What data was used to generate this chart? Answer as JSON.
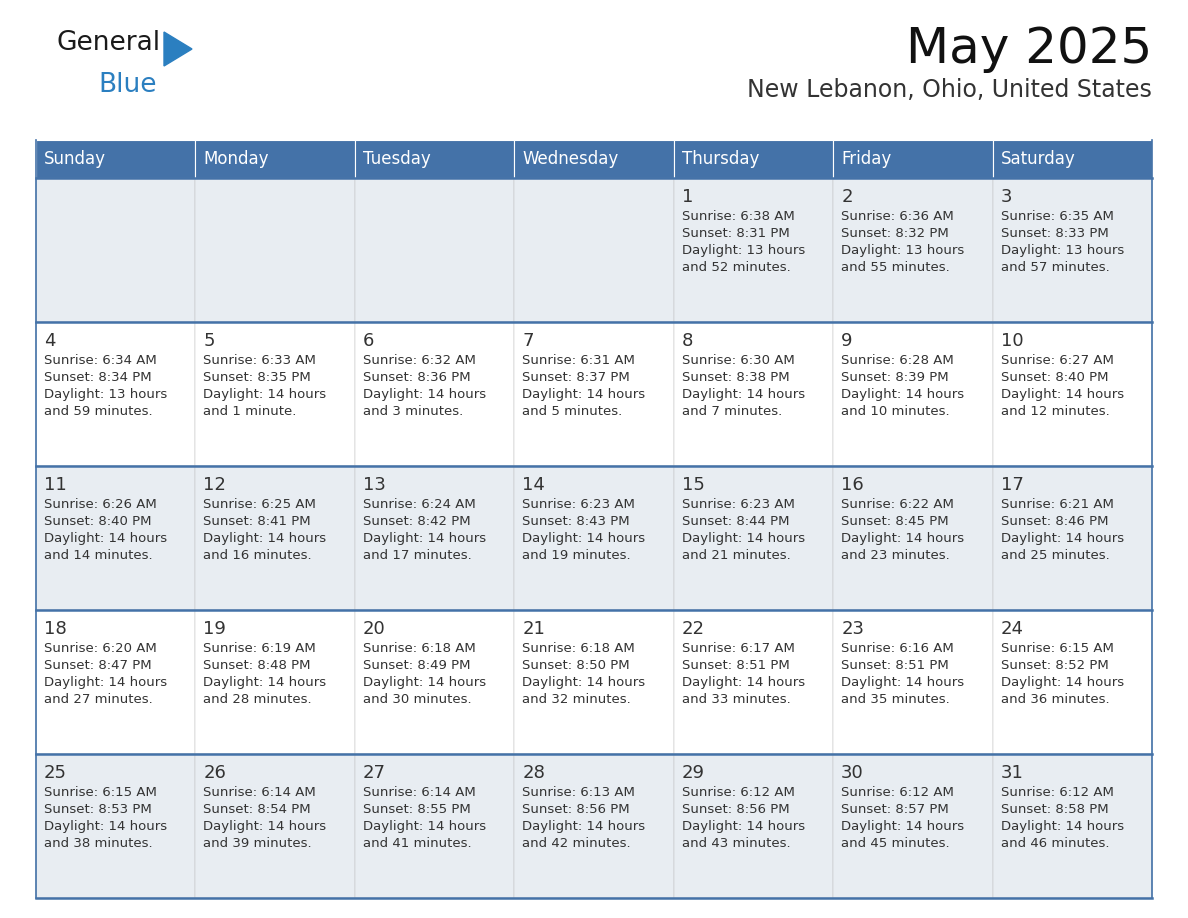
{
  "title": "May 2025",
  "subtitle": "New Lebanon, Ohio, United States",
  "header_bg_color": "#4472a8",
  "header_text_color": "#ffffff",
  "cell_bg_odd": "#e8edf2",
  "cell_bg_even": "#ffffff",
  "border_color": "#4472a8",
  "text_color": "#333333",
  "days_of_week": [
    "Sunday",
    "Monday",
    "Tuesday",
    "Wednesday",
    "Thursday",
    "Friday",
    "Saturday"
  ],
  "calendar_data": [
    [
      {
        "day": "",
        "sunrise": "",
        "sunset": "",
        "daylight": ""
      },
      {
        "day": "",
        "sunrise": "",
        "sunset": "",
        "daylight": ""
      },
      {
        "day": "",
        "sunrise": "",
        "sunset": "",
        "daylight": ""
      },
      {
        "day": "",
        "sunrise": "",
        "sunset": "",
        "daylight": ""
      },
      {
        "day": "1",
        "sunrise": "Sunrise: 6:38 AM",
        "sunset": "Sunset: 8:31 PM",
        "daylight": "Daylight: 13 hours\nand 52 minutes."
      },
      {
        "day": "2",
        "sunrise": "Sunrise: 6:36 AM",
        "sunset": "Sunset: 8:32 PM",
        "daylight": "Daylight: 13 hours\nand 55 minutes."
      },
      {
        "day": "3",
        "sunrise": "Sunrise: 6:35 AM",
        "sunset": "Sunset: 8:33 PM",
        "daylight": "Daylight: 13 hours\nand 57 minutes."
      }
    ],
    [
      {
        "day": "4",
        "sunrise": "Sunrise: 6:34 AM",
        "sunset": "Sunset: 8:34 PM",
        "daylight": "Daylight: 13 hours\nand 59 minutes."
      },
      {
        "day": "5",
        "sunrise": "Sunrise: 6:33 AM",
        "sunset": "Sunset: 8:35 PM",
        "daylight": "Daylight: 14 hours\nand 1 minute."
      },
      {
        "day": "6",
        "sunrise": "Sunrise: 6:32 AM",
        "sunset": "Sunset: 8:36 PM",
        "daylight": "Daylight: 14 hours\nand 3 minutes."
      },
      {
        "day": "7",
        "sunrise": "Sunrise: 6:31 AM",
        "sunset": "Sunset: 8:37 PM",
        "daylight": "Daylight: 14 hours\nand 5 minutes."
      },
      {
        "day": "8",
        "sunrise": "Sunrise: 6:30 AM",
        "sunset": "Sunset: 8:38 PM",
        "daylight": "Daylight: 14 hours\nand 7 minutes."
      },
      {
        "day": "9",
        "sunrise": "Sunrise: 6:28 AM",
        "sunset": "Sunset: 8:39 PM",
        "daylight": "Daylight: 14 hours\nand 10 minutes."
      },
      {
        "day": "10",
        "sunrise": "Sunrise: 6:27 AM",
        "sunset": "Sunset: 8:40 PM",
        "daylight": "Daylight: 14 hours\nand 12 minutes."
      }
    ],
    [
      {
        "day": "11",
        "sunrise": "Sunrise: 6:26 AM",
        "sunset": "Sunset: 8:40 PM",
        "daylight": "Daylight: 14 hours\nand 14 minutes."
      },
      {
        "day": "12",
        "sunrise": "Sunrise: 6:25 AM",
        "sunset": "Sunset: 8:41 PM",
        "daylight": "Daylight: 14 hours\nand 16 minutes."
      },
      {
        "day": "13",
        "sunrise": "Sunrise: 6:24 AM",
        "sunset": "Sunset: 8:42 PM",
        "daylight": "Daylight: 14 hours\nand 17 minutes."
      },
      {
        "day": "14",
        "sunrise": "Sunrise: 6:23 AM",
        "sunset": "Sunset: 8:43 PM",
        "daylight": "Daylight: 14 hours\nand 19 minutes."
      },
      {
        "day": "15",
        "sunrise": "Sunrise: 6:23 AM",
        "sunset": "Sunset: 8:44 PM",
        "daylight": "Daylight: 14 hours\nand 21 minutes."
      },
      {
        "day": "16",
        "sunrise": "Sunrise: 6:22 AM",
        "sunset": "Sunset: 8:45 PM",
        "daylight": "Daylight: 14 hours\nand 23 minutes."
      },
      {
        "day": "17",
        "sunrise": "Sunrise: 6:21 AM",
        "sunset": "Sunset: 8:46 PM",
        "daylight": "Daylight: 14 hours\nand 25 minutes."
      }
    ],
    [
      {
        "day": "18",
        "sunrise": "Sunrise: 6:20 AM",
        "sunset": "Sunset: 8:47 PM",
        "daylight": "Daylight: 14 hours\nand 27 minutes."
      },
      {
        "day": "19",
        "sunrise": "Sunrise: 6:19 AM",
        "sunset": "Sunset: 8:48 PM",
        "daylight": "Daylight: 14 hours\nand 28 minutes."
      },
      {
        "day": "20",
        "sunrise": "Sunrise: 6:18 AM",
        "sunset": "Sunset: 8:49 PM",
        "daylight": "Daylight: 14 hours\nand 30 minutes."
      },
      {
        "day": "21",
        "sunrise": "Sunrise: 6:18 AM",
        "sunset": "Sunset: 8:50 PM",
        "daylight": "Daylight: 14 hours\nand 32 minutes."
      },
      {
        "day": "22",
        "sunrise": "Sunrise: 6:17 AM",
        "sunset": "Sunset: 8:51 PM",
        "daylight": "Daylight: 14 hours\nand 33 minutes."
      },
      {
        "day": "23",
        "sunrise": "Sunrise: 6:16 AM",
        "sunset": "Sunset: 8:51 PM",
        "daylight": "Daylight: 14 hours\nand 35 minutes."
      },
      {
        "day": "24",
        "sunrise": "Sunrise: 6:15 AM",
        "sunset": "Sunset: 8:52 PM",
        "daylight": "Daylight: 14 hours\nand 36 minutes."
      }
    ],
    [
      {
        "day": "25",
        "sunrise": "Sunrise: 6:15 AM",
        "sunset": "Sunset: 8:53 PM",
        "daylight": "Daylight: 14 hours\nand 38 minutes."
      },
      {
        "day": "26",
        "sunrise": "Sunrise: 6:14 AM",
        "sunset": "Sunset: 8:54 PM",
        "daylight": "Daylight: 14 hours\nand 39 minutes."
      },
      {
        "day": "27",
        "sunrise": "Sunrise: 6:14 AM",
        "sunset": "Sunset: 8:55 PM",
        "daylight": "Daylight: 14 hours\nand 41 minutes."
      },
      {
        "day": "28",
        "sunrise": "Sunrise: 6:13 AM",
        "sunset": "Sunset: 8:56 PM",
        "daylight": "Daylight: 14 hours\nand 42 minutes."
      },
      {
        "day": "29",
        "sunrise": "Sunrise: 6:12 AM",
        "sunset": "Sunset: 8:56 PM",
        "daylight": "Daylight: 14 hours\nand 43 minutes."
      },
      {
        "day": "30",
        "sunrise": "Sunrise: 6:12 AM",
        "sunset": "Sunset: 8:57 PM",
        "daylight": "Daylight: 14 hours\nand 45 minutes."
      },
      {
        "day": "31",
        "sunrise": "Sunrise: 6:12 AM",
        "sunset": "Sunset: 8:58 PM",
        "daylight": "Daylight: 14 hours\nand 46 minutes."
      }
    ]
  ],
  "logo_general_color": "#1a1a1a",
  "logo_blue_color": "#2b7fc0",
  "logo_triangle_color": "#2b7fc0"
}
